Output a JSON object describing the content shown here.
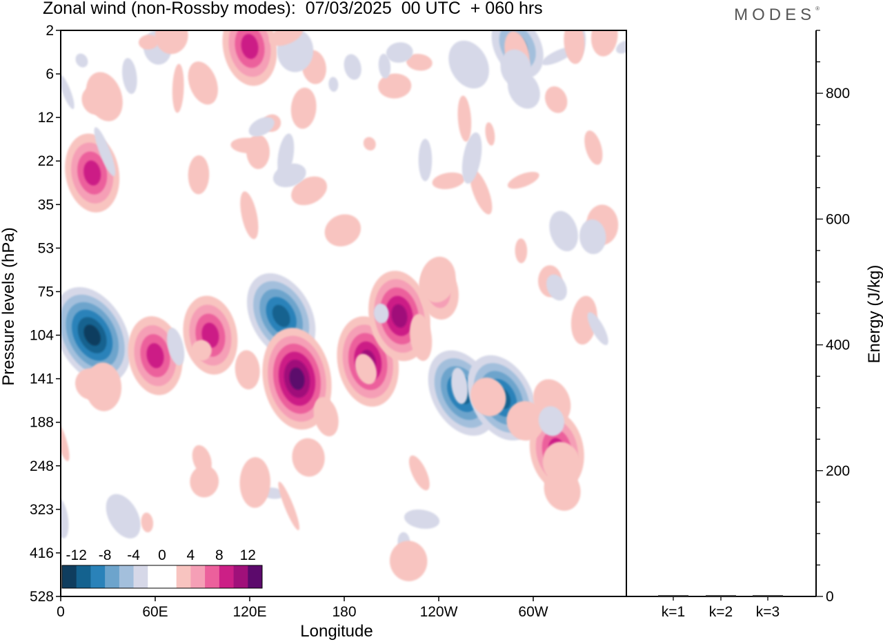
{
  "header": {
    "title": "Zonal wind (non-Rossby modes):  07/03/2025  00 UTC  + 060 hrs",
    "logo": "MODES"
  },
  "colors": {
    "negative": [
      "#0f3d5e",
      "#14628f",
      "#2a82b9",
      "#6da4cc",
      "#a3bfdc",
      "#d6d8e8"
    ],
    "neutral": "#ffffff",
    "positive": [
      "#f8c4c0",
      "#f59fb6",
      "#ec609c",
      "#cc1f86",
      "#a0107a",
      "#5c0a6c"
    ],
    "frame": "#000000"
  },
  "chart_data": [
    {
      "type": "heatmap",
      "title": "Zonal wind (non-Rossby modes):  07/03/2025  00 UTC  + 060 hrs",
      "xlabel": "Longitude",
      "ylabel": "Pressure levels (hPa)",
      "x_ticks": [
        "0",
        "60E",
        "120E",
        "180",
        "120W",
        "60W"
      ],
      "x_range": [
        "0",
        "360"
      ],
      "y_ticks": [
        "2",
        "6",
        "12",
        "22",
        "35",
        "53",
        "75",
        "104",
        "141",
        "188",
        "248",
        "323",
        "416",
        "528"
      ],
      "y_direction": "pressure increasing downward",
      "colorbar": {
        "labels": [
          "-12",
          "-8",
          "-4",
          "0",
          "4",
          "8",
          "12"
        ],
        "levels": [
          -14,
          -12,
          -10,
          -8,
          -6,
          -4,
          -2,
          2,
          4,
          6,
          8,
          10,
          12,
          14
        ],
        "placement": "bottom-left inset"
      },
      "features": [
        {
          "lon": 20,
          "level": 104,
          "value": -12
        },
        {
          "lon": 60,
          "level": 120,
          "value": 8
        },
        {
          "lon": 95,
          "level": 104,
          "value": 8
        },
        {
          "lon": 140,
          "level": 90,
          "value": -10
        },
        {
          "lon": 150,
          "level": 141,
          "value": 12
        },
        {
          "lon": 195,
          "level": 125,
          "value": 10
        },
        {
          "lon": 215,
          "level": 90,
          "value": 10
        },
        {
          "lon": 240,
          "level": 75,
          "value": 4
        },
        {
          "lon": 255,
          "level": 155,
          "value": -10
        },
        {
          "lon": 280,
          "level": 160,
          "value": -10
        },
        {
          "lon": 315,
          "level": 225,
          "value": 8
        },
        {
          "lon": 120,
          "level": 3,
          "value": 8
        },
        {
          "lon": 290,
          "level": 3,
          "value": -6
        },
        {
          "lon": 20,
          "level": 25,
          "value": 8
        }
      ]
    },
    {
      "type": "bar",
      "categories": [
        "k=1",
        "k=2",
        "k=3"
      ],
      "values": [
        1,
        1,
        1
      ],
      "ylabel": "Energy (J/kg)",
      "ylim": [
        0,
        900
      ],
      "y_ticks": [
        0,
        200,
        400,
        600,
        800
      ],
      "axis_side": "right"
    }
  ]
}
